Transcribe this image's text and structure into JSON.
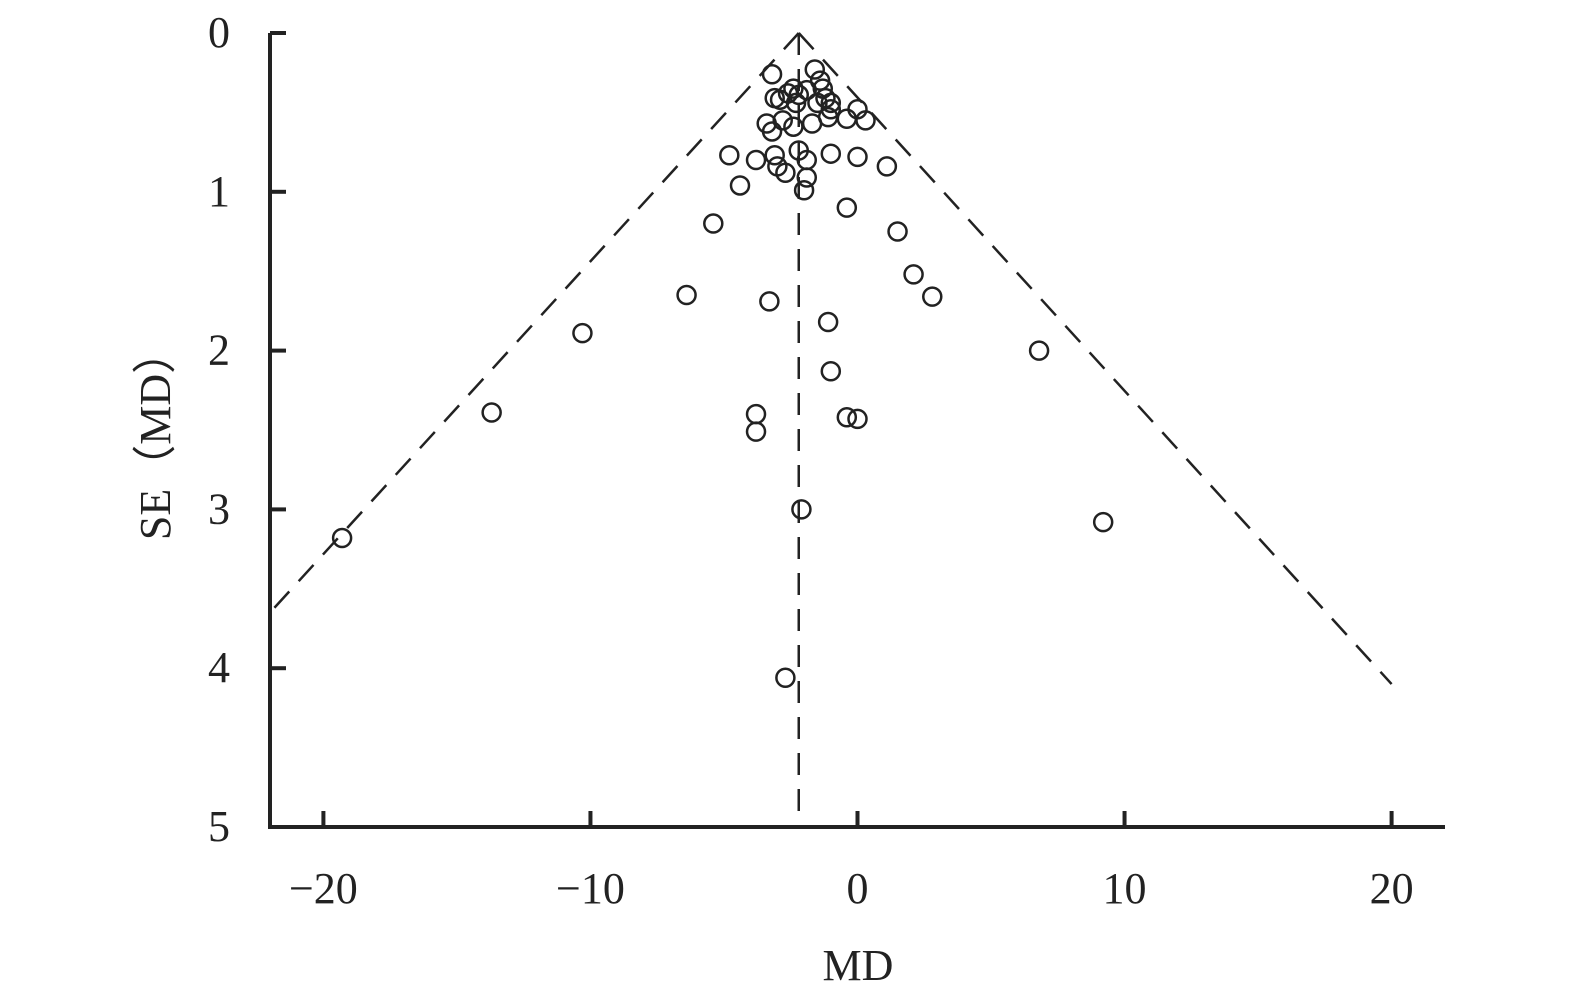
{
  "chart_data": {
    "type": "scatter",
    "x_label": "MD",
    "y_label": "SE（MD）",
    "xlim": [
      -22,
      22
    ],
    "ylim": [
      0,
      5
    ],
    "y_inverted": true,
    "xticks": [
      {
        "value": -20,
        "label": "−20"
      },
      {
        "value": -10,
        "label": "−10"
      },
      0,
      10,
      20
    ],
    "yticks": [
      0,
      1,
      2,
      3,
      4,
      5
    ],
    "color": "#222222",
    "lines": [
      {
        "x": [
          -2.2,
          -2.2
        ],
        "y": [
          0,
          5
        ]
      },
      {
        "x": [
          -2.2,
          -22
        ],
        "y": [
          0,
          3.65
        ]
      },
      {
        "x": [
          -2.2,
          20
        ],
        "y": [
          0,
          4.1
        ]
      }
    ],
    "x": [
      -3.2,
      -1.6,
      -1.4,
      -1.3,
      -2.4,
      -2.6,
      -2.2,
      -1.9,
      -3.1,
      -2.9,
      -2.3,
      -1.2,
      -1.0,
      -1.5,
      0,
      -1.0,
      -0.4,
      0.3,
      -1.1,
      -3.4,
      -2.8,
      -2.4,
      -1.7,
      -3.2,
      -4.8,
      -3.8,
      -3.1,
      -2.2,
      -1.9,
      -1.0,
      0,
      1.1,
      -3.0,
      -2.7,
      -1.9,
      -4.4,
      -2.0,
      -0.4,
      -5.4,
      1.5,
      2.1,
      2.8,
      -6.4,
      -3.3,
      -1.1,
      -10.3,
      6.8,
      -1.0,
      -13.7,
      -3.8,
      -0.4,
      0,
      -3.8,
      -2.1,
      9.2,
      -19.3,
      -2.7
    ],
    "y": [
      0.26,
      0.23,
      0.3,
      0.35,
      0.35,
      0.38,
      0.39,
      0.36,
      0.41,
      0.42,
      0.44,
      0.41,
      0.44,
      0.44,
      0.48,
      0.48,
      0.54,
      0.55,
      0.53,
      0.57,
      0.55,
      0.59,
      0.57,
      0.62,
      0.77,
      0.8,
      0.77,
      0.74,
      0.8,
      0.76,
      0.78,
      0.84,
      0.84,
      0.88,
      0.91,
      0.96,
      0.99,
      1.1,
      1.2,
      1.25,
      1.52,
      1.66,
      1.65,
      1.69,
      1.82,
      1.89,
      2.0,
      2.13,
      2.39,
      2.4,
      2.42,
      2.43,
      2.51,
      3.0,
      3.08,
      3.18,
      4.06
    ]
  }
}
